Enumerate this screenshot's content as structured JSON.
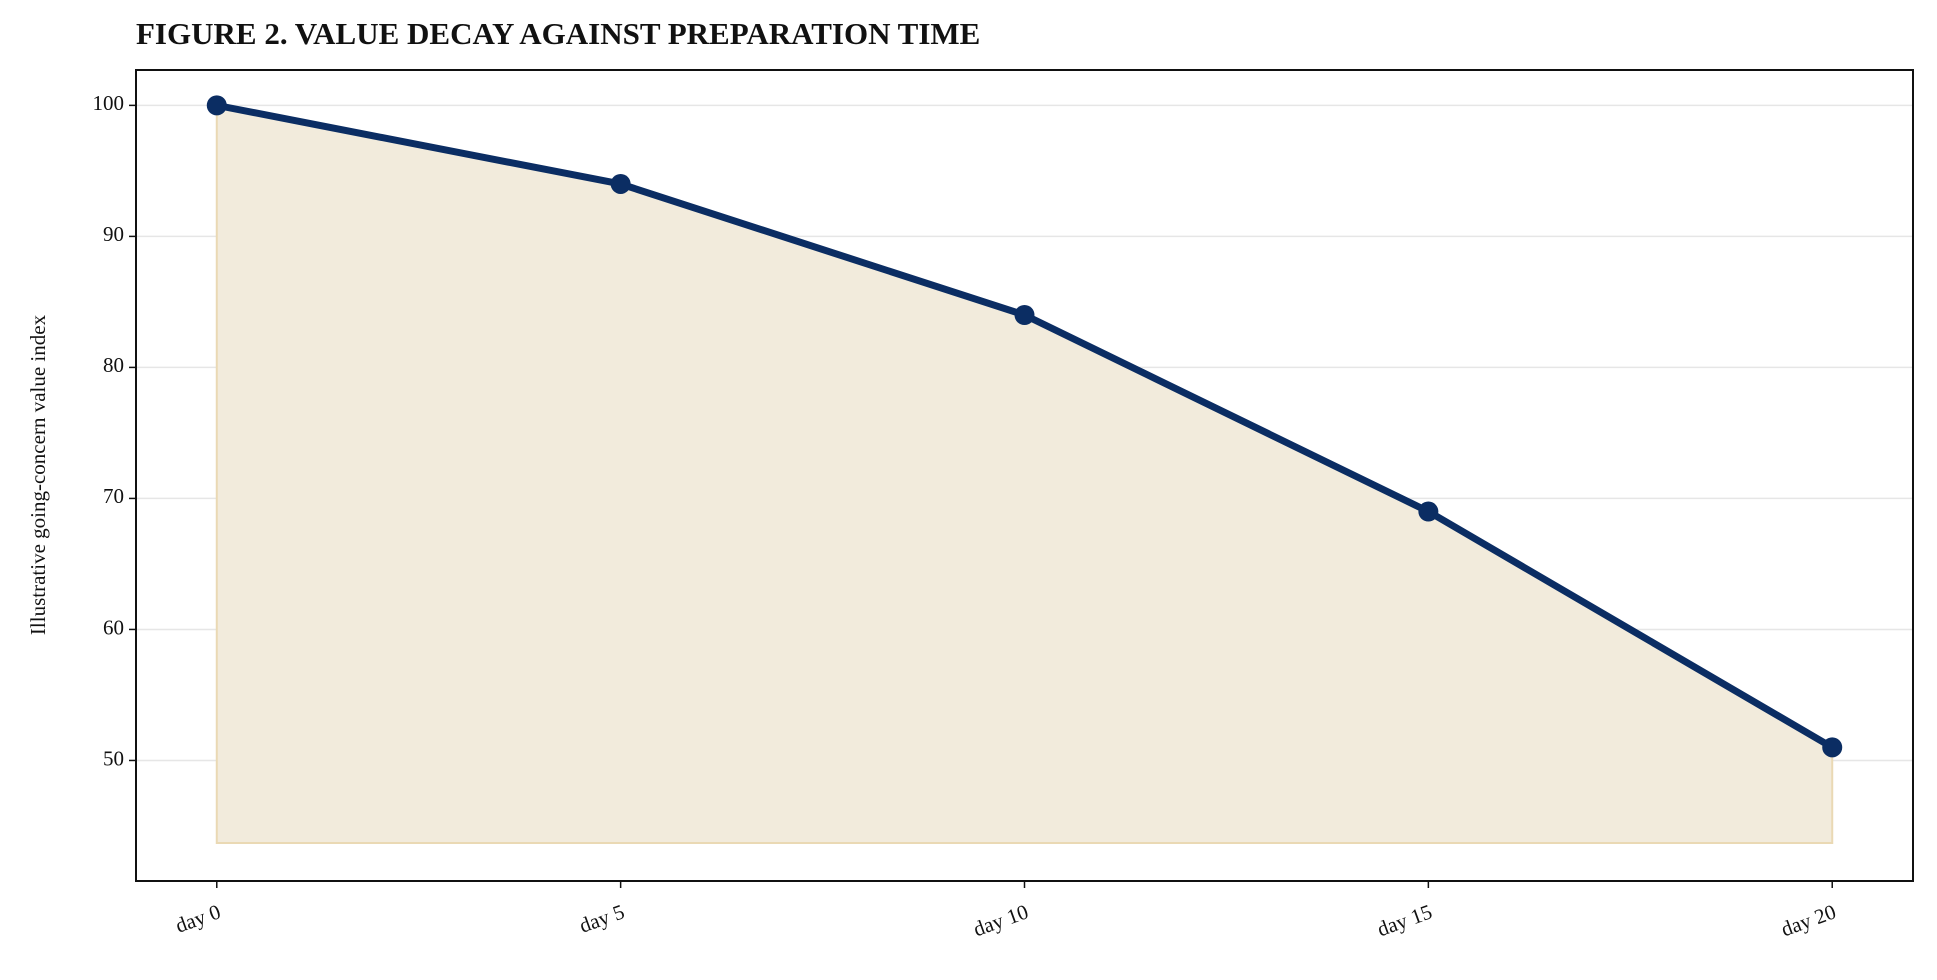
{
  "chart_data": {
    "type": "line",
    "title": "FIGURE 2. VALUE DECAY AGAINST PREPARATION TIME",
    "y_label": "Illustrative going-concern value index",
    "categories": [
      "day 0",
      "day 5",
      "day 10",
      "day 15",
      "day 20"
    ],
    "values": [
      100,
      94,
      84,
      69,
      51
    ],
    "color": "#0b2d63",
    "fill_color": "#f2ebdc",
    "fill_to": 43.7,
    "ylim": [
      40.8,
      102.7
    ],
    "yticks": [
      50,
      60,
      70,
      80,
      90,
      100
    ],
    "grid": true
  }
}
